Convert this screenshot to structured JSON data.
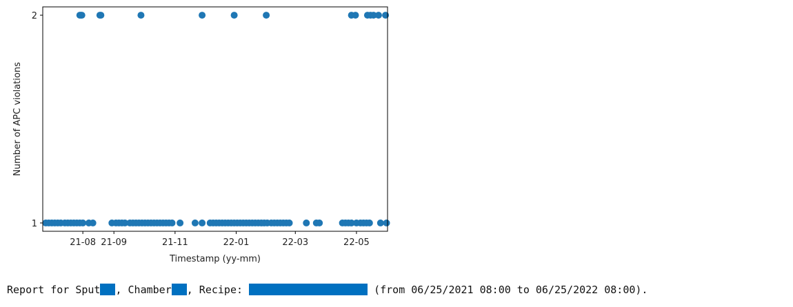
{
  "chart_data": {
    "type": "scatter",
    "xlabel": "Timestamp (yy-mm)",
    "ylabel": "Number of APC violations",
    "x_tick_labels": [
      "21-08",
      "21-09",
      "21-11",
      "22-01",
      "22-03",
      "22-05"
    ],
    "x_ticks": [
      "2021-08-01",
      "2021-09-01",
      "2021-11-01",
      "2022-01-01",
      "2022-03-01",
      "2022-05-01"
    ],
    "y_ticks": [
      1,
      2
    ],
    "xlim": [
      "2021-06-22",
      "2022-06-01"
    ],
    "ylim": [
      0.96,
      2.04
    ],
    "grid": false,
    "color": "#1f77b4",
    "points": [
      {
        "x": "2021-07-29",
        "y": 2
      },
      {
        "x": "2021-07-30",
        "y": 2
      },
      {
        "x": "2021-07-31",
        "y": 2
      },
      {
        "x": "2021-08-18",
        "y": 2
      },
      {
        "x": "2021-08-19",
        "y": 2
      },
      {
        "x": "2021-09-28",
        "y": 2
      },
      {
        "x": "2021-11-28",
        "y": 2
      },
      {
        "x": "2021-12-30",
        "y": 2
      },
      {
        "x": "2022-01-31",
        "y": 2
      },
      {
        "x": "2022-04-26",
        "y": 2
      },
      {
        "x": "2022-04-30",
        "y": 2
      },
      {
        "x": "2022-05-12",
        "y": 2
      },
      {
        "x": "2022-05-15",
        "y": 2
      },
      {
        "x": "2022-05-18",
        "y": 2
      },
      {
        "x": "2022-05-23",
        "y": 2
      },
      {
        "x": "2022-05-30",
        "y": 2
      },
      {
        "x": "2021-06-25",
        "y": 1
      },
      {
        "x": "2021-06-28",
        "y": 1
      },
      {
        "x": "2021-07-01",
        "y": 1
      },
      {
        "x": "2021-07-04",
        "y": 1
      },
      {
        "x": "2021-07-07",
        "y": 1
      },
      {
        "x": "2021-07-10",
        "y": 1
      },
      {
        "x": "2021-07-14",
        "y": 1
      },
      {
        "x": "2021-07-17",
        "y": 1
      },
      {
        "x": "2021-07-20",
        "y": 1
      },
      {
        "x": "2021-07-23",
        "y": 1
      },
      {
        "x": "2021-07-26",
        "y": 1
      },
      {
        "x": "2021-07-29",
        "y": 1
      },
      {
        "x": "2021-08-01",
        "y": 1
      },
      {
        "x": "2021-08-07",
        "y": 1
      },
      {
        "x": "2021-08-11",
        "y": 1
      },
      {
        "x": "2021-08-30",
        "y": 1
      },
      {
        "x": "2021-09-03",
        "y": 1
      },
      {
        "x": "2021-09-06",
        "y": 1
      },
      {
        "x": "2021-09-09",
        "y": 1
      },
      {
        "x": "2021-09-12",
        "y": 1
      },
      {
        "x": "2021-09-17",
        "y": 1
      },
      {
        "x": "2021-09-20",
        "y": 1
      },
      {
        "x": "2021-09-23",
        "y": 1
      },
      {
        "x": "2021-09-26",
        "y": 1
      },
      {
        "x": "2021-09-29",
        "y": 1
      },
      {
        "x": "2021-10-02",
        "y": 1
      },
      {
        "x": "2021-10-05",
        "y": 1
      },
      {
        "x": "2021-10-08",
        "y": 1
      },
      {
        "x": "2021-10-11",
        "y": 1
      },
      {
        "x": "2021-10-14",
        "y": 1
      },
      {
        "x": "2021-10-17",
        "y": 1
      },
      {
        "x": "2021-10-20",
        "y": 1
      },
      {
        "x": "2021-10-23",
        "y": 1
      },
      {
        "x": "2021-10-26",
        "y": 1
      },
      {
        "x": "2021-10-29",
        "y": 1
      },
      {
        "x": "2021-11-06",
        "y": 1
      },
      {
        "x": "2021-11-21",
        "y": 1
      },
      {
        "x": "2021-11-28",
        "y": 1
      },
      {
        "x": "2021-12-06",
        "y": 1
      },
      {
        "x": "2021-12-09",
        "y": 1
      },
      {
        "x": "2021-12-12",
        "y": 1
      },
      {
        "x": "2021-12-15",
        "y": 1
      },
      {
        "x": "2021-12-18",
        "y": 1
      },
      {
        "x": "2021-12-21",
        "y": 1
      },
      {
        "x": "2021-12-24",
        "y": 1
      },
      {
        "x": "2021-12-27",
        "y": 1
      },
      {
        "x": "2021-12-30",
        "y": 1
      },
      {
        "x": "2022-01-02",
        "y": 1
      },
      {
        "x": "2022-01-05",
        "y": 1
      },
      {
        "x": "2022-01-08",
        "y": 1
      },
      {
        "x": "2022-01-11",
        "y": 1
      },
      {
        "x": "2022-01-14",
        "y": 1
      },
      {
        "x": "2022-01-17",
        "y": 1
      },
      {
        "x": "2022-01-20",
        "y": 1
      },
      {
        "x": "2022-01-23",
        "y": 1
      },
      {
        "x": "2022-01-26",
        "y": 1
      },
      {
        "x": "2022-01-29",
        "y": 1
      },
      {
        "x": "2022-02-01",
        "y": 1
      },
      {
        "x": "2022-02-05",
        "y": 1
      },
      {
        "x": "2022-02-08",
        "y": 1
      },
      {
        "x": "2022-02-11",
        "y": 1
      },
      {
        "x": "2022-02-14",
        "y": 1
      },
      {
        "x": "2022-02-17",
        "y": 1
      },
      {
        "x": "2022-02-20",
        "y": 1
      },
      {
        "x": "2022-02-23",
        "y": 1
      },
      {
        "x": "2022-03-12",
        "y": 1
      },
      {
        "x": "2022-03-22",
        "y": 1
      },
      {
        "x": "2022-03-25",
        "y": 1
      },
      {
        "x": "2022-04-17",
        "y": 1
      },
      {
        "x": "2022-04-20",
        "y": 1
      },
      {
        "x": "2022-04-23",
        "y": 1
      },
      {
        "x": "2022-04-26",
        "y": 1
      },
      {
        "x": "2022-05-01",
        "y": 1
      },
      {
        "x": "2022-05-05",
        "y": 1
      },
      {
        "x": "2022-05-08",
        "y": 1
      },
      {
        "x": "2022-05-11",
        "y": 1
      },
      {
        "x": "2022-05-14",
        "y": 1
      },
      {
        "x": "2022-05-25",
        "y": 1
      },
      {
        "x": "2022-05-31",
        "y": 1
      }
    ]
  },
  "report": {
    "prefix": "Report for Sput",
    "chamber_text": ", Chamber",
    "recipe_text": ", Recipe: ",
    "range_text": " (from 06/25/2021 08:00 to 06/25/2022 08:00).",
    "redaction_color": "#0070c0"
  }
}
